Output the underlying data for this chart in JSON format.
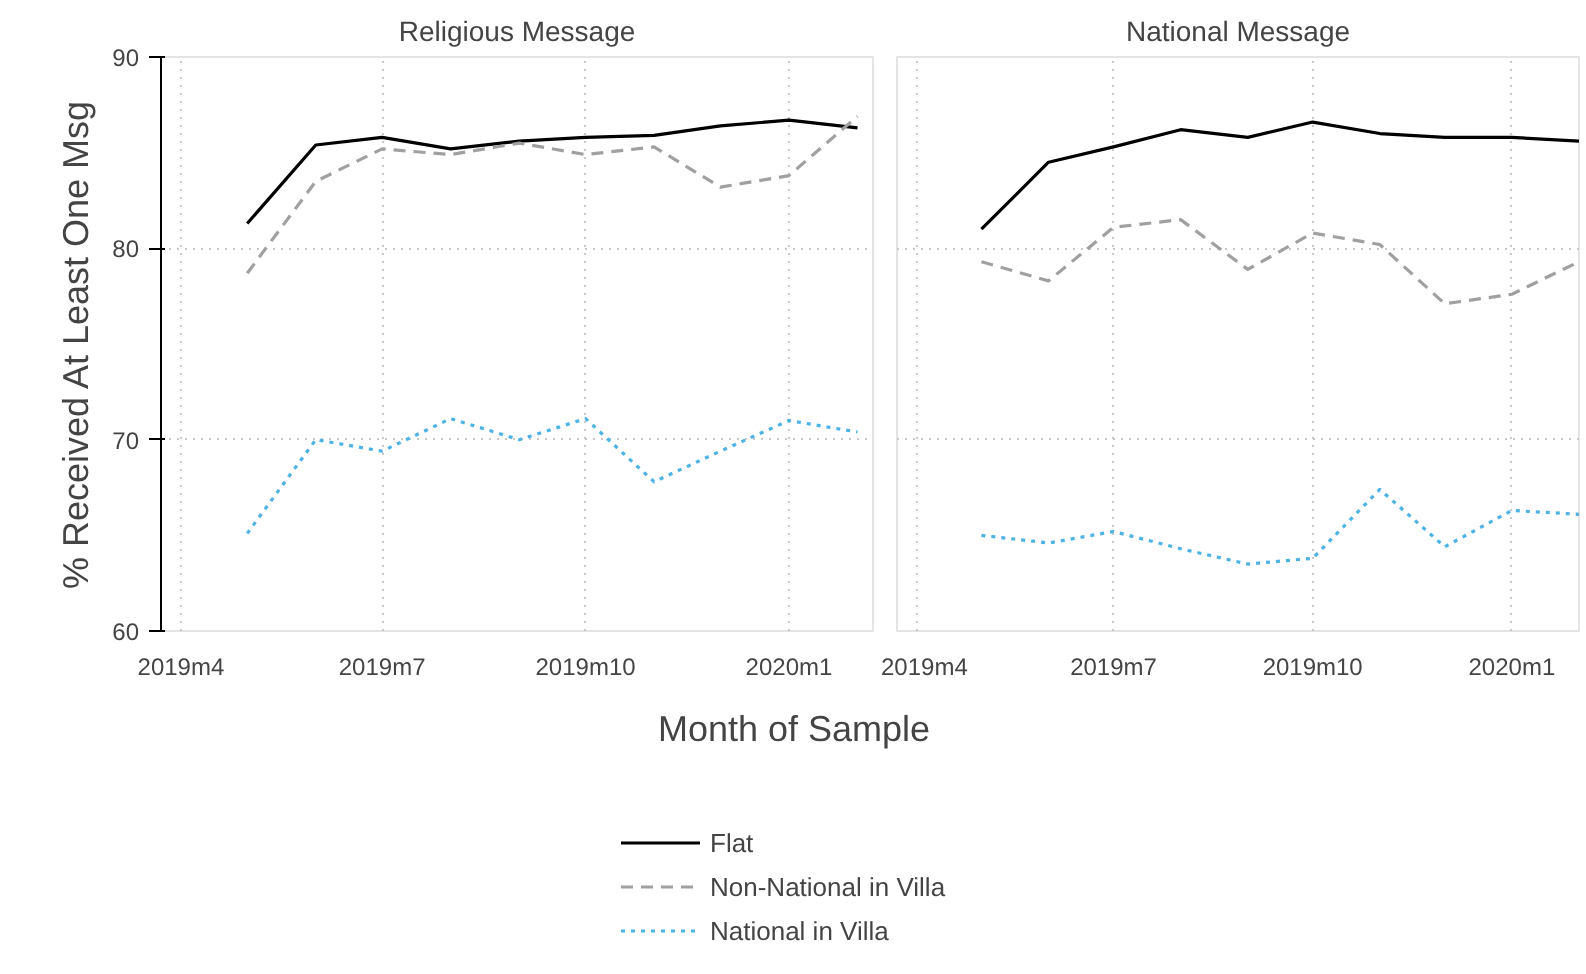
{
  "chart_data": [
    {
      "type": "line",
      "title": "Religious Message",
      "xlabel": "Month of Sample",
      "ylabel": "% Received At Least One Msg",
      "legend": "bottom",
      "grid": true,
      "x": [
        "2019-05",
        "2019-06",
        "2019-07",
        "2019-08",
        "2019-09",
        "2019-10",
        "2019-11",
        "2019-12",
        "2020-01",
        "2020-02"
      ],
      "xlim": [
        "2019-03-23",
        "2020-02-08"
      ],
      "xticks": [
        {
          "value": "2019-04",
          "label": "2019m4"
        },
        {
          "value": "2019-07",
          "label": "2019m7"
        },
        {
          "value": "2019-10",
          "label": "2019m10"
        },
        {
          "value": "2020-01",
          "label": "2020m1"
        }
      ],
      "ylim": [
        60,
        90
      ],
      "yticks": [
        60,
        70,
        80,
        90
      ],
      "series": [
        {
          "name": "Flat",
          "color": "#000000",
          "line_style": "solid",
          "values": [
            81.3,
            85.4,
            85.8,
            85.2,
            85.6,
            85.8,
            85.9,
            86.4,
            86.7,
            86.3
          ]
        },
        {
          "name": "Non-National in Villa",
          "color": "#a0a0a0",
          "line_style": "dashed",
          "values": [
            78.7,
            83.5,
            85.2,
            84.9,
            85.5,
            84.9,
            85.3,
            83.2,
            83.8,
            86.9
          ]
        },
        {
          "name": "National in Villa",
          "color": "#4db3e6",
          "line_style": "dotted",
          "values": [
            65.1,
            70.0,
            69.4,
            71.1,
            70.0,
            71.1,
            67.8,
            69.4,
            71.0,
            70.4
          ]
        }
      ]
    },
    {
      "type": "line",
      "title": "National Message",
      "grid": true,
      "tick_labels": "x",
      "x": [
        "2019-05",
        "2019-06",
        "2019-07",
        "2019-08",
        "2019-09",
        "2019-10",
        "2019-11",
        "2019-12",
        "2020-01",
        "2020-02"
      ],
      "xlim": [
        "2019-03-23",
        "2020-02-01"
      ],
      "xticks": [
        {
          "value": "2019-04",
          "label": "2019m4"
        },
        {
          "value": "2019-07",
          "label": "2019m7"
        },
        {
          "value": "2019-10",
          "label": "2019m10"
        },
        {
          "value": "2020-01",
          "label": "2020m1"
        }
      ],
      "ylim": [
        60,
        90
      ],
      "yticks": [
        60,
        70,
        80,
        90
      ],
      "series": [
        {
          "color": "#000000",
          "line_style": "solid",
          "values": [
            81.0,
            84.5,
            85.3,
            86.2,
            85.8,
            86.6,
            86.0,
            85.8,
            85.8,
            85.6
          ]
        },
        {
          "color": "#a0a0a0",
          "line_style": "dashed",
          "values": [
            79.3,
            78.3,
            81.1,
            81.5,
            78.9,
            80.8,
            80.2,
            77.1,
            77.6,
            79.3
          ]
        },
        {
          "color": "#4db3e6",
          "line_style": "dotted",
          "values": [
            65.0,
            64.6,
            65.2,
            64.3,
            63.5,
            63.8,
            67.4,
            64.4,
            66.3,
            66.1
          ]
        }
      ]
    }
  ]
}
